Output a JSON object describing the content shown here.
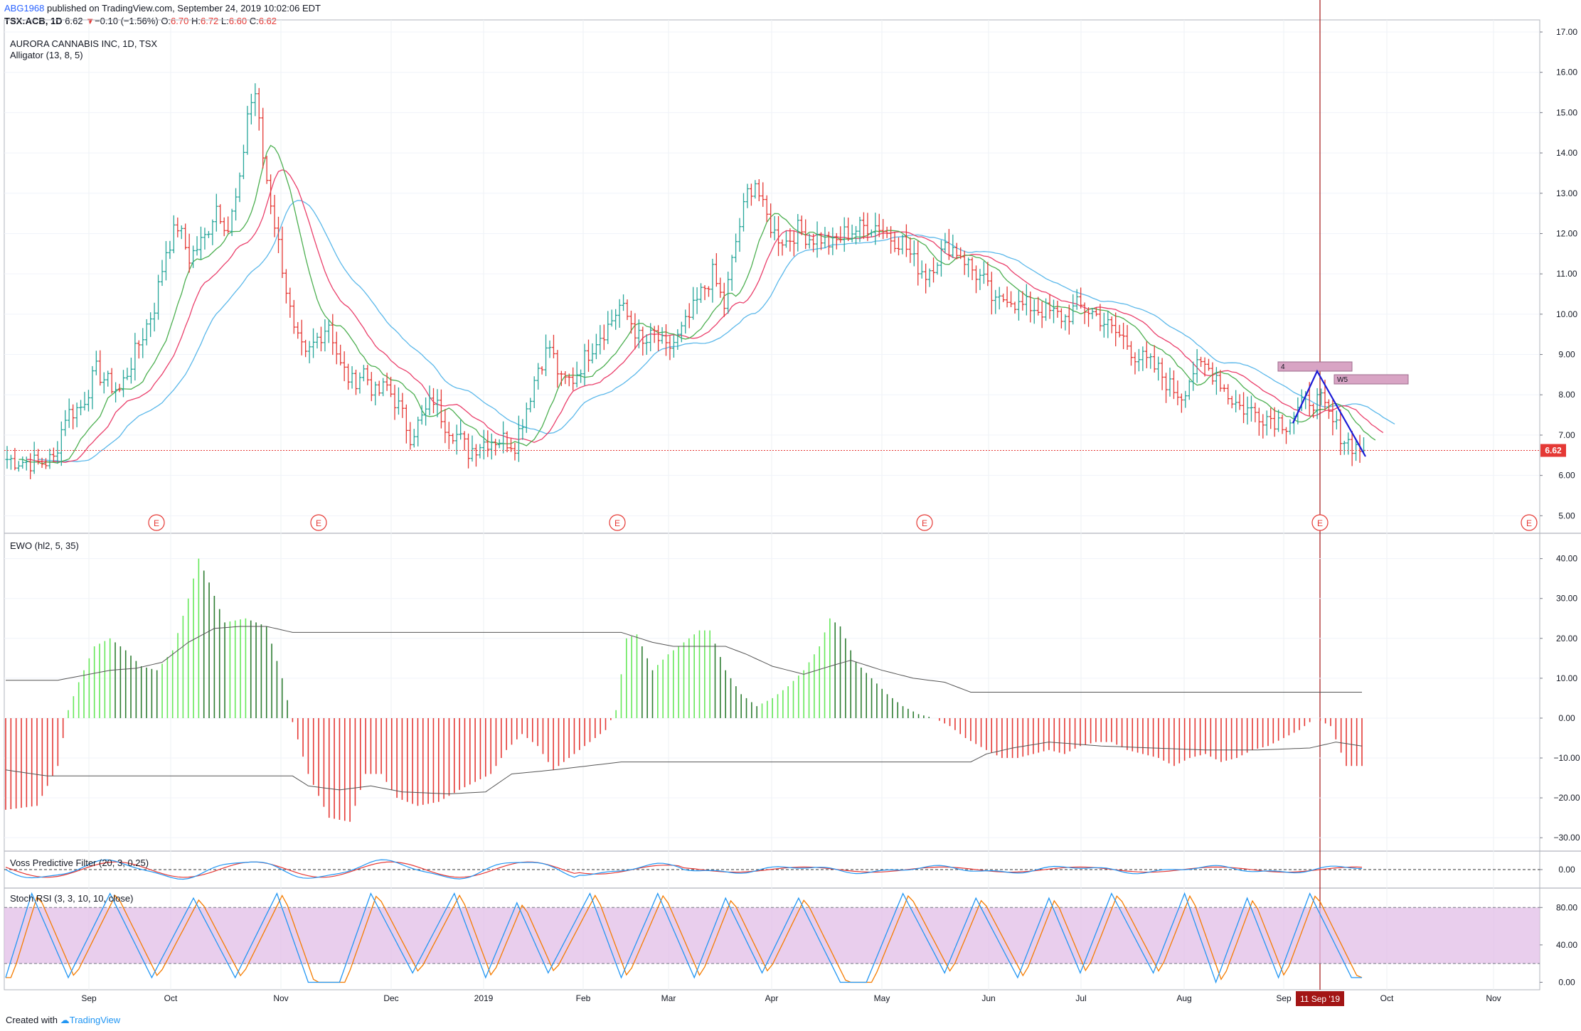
{
  "header": {
    "author": "ABG1968",
    "published": " published on TradingView.com, September 24, 2019 10:02:06 EDT"
  },
  "symbol_line": {
    "symbol": "TSX:ACB, 1D",
    "last": "6.62",
    "arrow": "▼",
    "change": "−0.10 (−1.56%)",
    "o_label": "O:",
    "o": "6.70",
    "h_label": "H:",
    "h": "6.72",
    "l_label": "L:",
    "l": "6.60",
    "c_label": "C:",
    "c": "6.62"
  },
  "footer": {
    "created_with": "Created with",
    "brand": "TradingView"
  },
  "colors": {
    "up": "#26a69a",
    "down": "#e53935",
    "jaw": "#5bb8ea",
    "teeth": "#ea3f6b",
    "lips": "#4caf50",
    "ewo_up_strong": "#2e7d32",
    "ewo_up_light": "#66e85a",
    "ewo_down": "#e53935",
    "stoch_k": "#2196f3",
    "stoch_d": "#f57c00",
    "band": "#e1bee7",
    "wave": "#1a1ad6",
    "event": "#e53935"
  },
  "chart_data": [
    {
      "type": "ohlc",
      "title": "AURORA CANNABIS INC, 1D, TSX",
      "indicator": "Alligator (13, 8, 5)",
      "ylim": [
        4.6,
        17.3
      ],
      "y_ticks": [
        "5.00",
        "6.00",
        "7.00",
        "8.00",
        "9.00",
        "10.00",
        "11.00",
        "12.00",
        "13.00",
        "14.00",
        "15.00",
        "16.00",
        "17.00"
      ],
      "x_ticks": [
        "Sep",
        "Oct",
        "Nov",
        "Dec",
        "2019",
        "Feb",
        "Mar",
        "Apr",
        "May",
        "Jun",
        "Jul",
        "Aug",
        "Sep",
        "Oct",
        "Nov"
      ],
      "last_price_label": "6.62",
      "crosshair_date": "11 Sep '19",
      "events_label": "E",
      "annotations": [
        "4",
        "W5"
      ],
      "close_path": [
        [
          0,
          6.4
        ],
        [
          8,
          6.3
        ],
        [
          12,
          6.4
        ],
        [
          15,
          7.5
        ],
        [
          19,
          7.7
        ],
        [
          23,
          8.6
        ],
        [
          26,
          8.3
        ],
        [
          29,
          8.1
        ],
        [
          32,
          8.8
        ],
        [
          35,
          9.5
        ],
        [
          38,
          10.2
        ],
        [
          41,
          11.6
        ],
        [
          44,
          12.2
        ],
        [
          47,
          11.4
        ],
        [
          51,
          11.9
        ],
        [
          54,
          12.7
        ],
        [
          57,
          12.1
        ],
        [
          60,
          13.2
        ],
        [
          62,
          15.0
        ],
        [
          64,
          15.5
        ],
        [
          66,
          13.9
        ],
        [
          68,
          12.8
        ],
        [
          71,
          11.2
        ],
        [
          74,
          9.5
        ],
        [
          77,
          8.9
        ],
        [
          80,
          9.4
        ],
        [
          83,
          9.8
        ],
        [
          86,
          8.7
        ],
        [
          89,
          8.3
        ],
        [
          92,
          8.6
        ],
        [
          95,
          8.0
        ],
        [
          98,
          8.2
        ],
        [
          101,
          7.7
        ],
        [
          104,
          7.0
        ],
        [
          107,
          7.4
        ],
        [
          110,
          7.9
        ],
        [
          113,
          7.3
        ],
        [
          116,
          7.0
        ],
        [
          119,
          6.6
        ],
        [
          122,
          6.8
        ],
        [
          125,
          6.9
        ],
        [
          128,
          6.9
        ],
        [
          131,
          6.8
        ],
        [
          134,
          7.7
        ],
        [
          137,
          8.7
        ],
        [
          140,
          9.2
        ],
        [
          143,
          8.3
        ],
        [
          146,
          8.4
        ],
        [
          149,
          8.9
        ],
        [
          152,
          9.4
        ],
        [
          155,
          9.7
        ],
        [
          158,
          10.2
        ],
        [
          161,
          9.8
        ],
        [
          164,
          9.2
        ],
        [
          167,
          9.5
        ],
        [
          170,
          9.1
        ],
        [
          173,
          9.4
        ],
        [
          176,
          9.9
        ],
        [
          179,
          10.5
        ],
        [
          182,
          11.0
        ],
        [
          185,
          10.2
        ],
        [
          188,
          11.8
        ],
        [
          191,
          13.0
        ],
        [
          193,
          13.3
        ],
        [
          195,
          12.6
        ],
        [
          198,
          12.0
        ],
        [
          201,
          11.8
        ],
        [
          204,
          12.1
        ],
        [
          207,
          11.9
        ],
        [
          210,
          11.9
        ],
        [
          213,
          11.7
        ],
        [
          216,
          12.0
        ],
        [
          219,
          12.1
        ],
        [
          222,
          12.2
        ],
        [
          225,
          12.2
        ],
        [
          228,
          11.9
        ],
        [
          231,
          11.8
        ],
        [
          234,
          11.3
        ],
        [
          237,
          11.0
        ],
        [
          240,
          11.4
        ],
        [
          243,
          11.7
        ],
        [
          246,
          11.5
        ],
        [
          249,
          11.1
        ],
        [
          252,
          10.8
        ],
        [
          255,
          10.2
        ],
        [
          258,
          10.5
        ],
        [
          261,
          10.2
        ],
        [
          264,
          10.2
        ],
        [
          267,
          10.1
        ],
        [
          270,
          10.0
        ],
        [
          273,
          9.9
        ],
        [
          276,
          10.2
        ],
        [
          279,
          10.1
        ],
        [
          282,
          9.9
        ],
        [
          285,
          9.6
        ],
        [
          288,
          9.4
        ],
        [
          291,
          9.0
        ],
        [
          294,
          8.8
        ],
        [
          297,
          8.6
        ],
        [
          300,
          8.2
        ],
        [
          303,
          8.0
        ],
        [
          306,
          8.6
        ],
        [
          309,
          8.7
        ],
        [
          312,
          8.5
        ],
        [
          315,
          8.0
        ],
        [
          318,
          7.7
        ],
        [
          321,
          7.6
        ],
        [
          324,
          7.5
        ],
        [
          327,
          7.4
        ],
        [
          330,
          7.3
        ],
        [
          333,
          7.6
        ],
        [
          336,
          7.9
        ],
        [
          339,
          7.8
        ],
        [
          342,
          7.3
        ],
        [
          345,
          6.9
        ],
        [
          348,
          6.7
        ],
        [
          350,
          6.62
        ]
      ],
      "alligator_note": "lips 5, teeth 8, jaw 13 smoothed moving averages"
    },
    {
      "type": "histogram",
      "title": "EWO (hl2, 5, 35)",
      "ylim": [
        -33,
        46
      ],
      "y_ticks": [
        "40.00",
        "30.00",
        "20.00",
        "10.00",
        "0.00",
        "−10.00",
        "−20.00",
        "−30.00"
      ],
      "values_path": [
        [
          0,
          -23
        ],
        [
          6,
          -22
        ],
        [
          10,
          -12
        ],
        [
          12,
          2
        ],
        [
          14,
          9
        ],
        [
          17,
          18
        ],
        [
          20,
          20
        ],
        [
          23,
          17
        ],
        [
          26,
          13
        ],
        [
          29,
          12
        ],
        [
          32,
          17
        ],
        [
          35,
          30
        ],
        [
          37,
          40
        ],
        [
          39,
          34
        ],
        [
          42,
          24
        ],
        [
          46,
          25
        ],
        [
          50,
          23
        ],
        [
          53,
          10
        ],
        [
          55,
          -1
        ],
        [
          58,
          -14
        ],
        [
          62,
          -25
        ],
        [
          66,
          -26
        ],
        [
          69,
          -14
        ],
        [
          72,
          -14
        ],
        [
          75,
          -20
        ],
        [
          79,
          -22
        ],
        [
          83,
          -21
        ],
        [
          87,
          -18
        ],
        [
          90,
          -16
        ],
        [
          93,
          -14
        ],
        [
          96,
          -8
        ],
        [
          99,
          -4
        ],
        [
          102,
          -7
        ],
        [
          105,
          -13
        ],
        [
          108,
          -10
        ],
        [
          112,
          -6
        ],
        [
          115,
          -3
        ],
        [
          117,
          2
        ],
        [
          119,
          20
        ],
        [
          121,
          21
        ],
        [
          124,
          12
        ],
        [
          127,
          16
        ],
        [
          130,
          19
        ],
        [
          133,
          22
        ],
        [
          135,
          22
        ],
        [
          138,
          12
        ],
        [
          141,
          6
        ],
        [
          144,
          3
        ],
        [
          147,
          5
        ],
        [
          150,
          8
        ],
        [
          153,
          12
        ],
        [
          156,
          18
        ],
        [
          158,
          25
        ],
        [
          160,
          23
        ],
        [
          163,
          14
        ],
        [
          166,
          10
        ],
        [
          169,
          6
        ],
        [
          172,
          3
        ],
        [
          175,
          1
        ],
        [
          178,
          0
        ],
        [
          181,
          -2
        ],
        [
          184,
          -5
        ],
        [
          188,
          -8
        ],
        [
          191,
          -10
        ],
        [
          194,
          -10
        ],
        [
          197,
          -9
        ],
        [
          200,
          -8
        ],
        [
          203,
          -9
        ],
        [
          206,
          -7
        ],
        [
          209,
          -6
        ],
        [
          212,
          -6
        ],
        [
          215,
          -8
        ],
        [
          218,
          -9
        ],
        [
          221,
          -10
        ],
        [
          224,
          -12
        ],
        [
          227,
          -10
        ],
        [
          230,
          -9
        ],
        [
          233,
          -11
        ],
        [
          236,
          -10
        ],
        [
          239,
          -8
        ],
        [
          242,
          -7
        ],
        [
          245,
          -5
        ],
        [
          248,
          -3
        ],
        [
          251,
          0
        ],
        [
          254,
          -2
        ],
        [
          257,
          -12
        ],
        [
          260,
          -12
        ]
      ],
      "upper_band_path": [
        [
          0,
          9.5
        ],
        [
          10,
          9.5
        ],
        [
          14,
          10.5
        ],
        [
          20,
          12
        ],
        [
          25,
          12.5
        ],
        [
          30,
          14
        ],
        [
          35,
          19
        ],
        [
          40,
          22.5
        ],
        [
          45,
          23
        ],
        [
          50,
          23
        ],
        [
          55,
          21.5
        ],
        [
          118,
          21.5
        ],
        [
          124,
          19
        ],
        [
          128,
          18
        ],
        [
          133,
          18
        ],
        [
          138,
          18
        ],
        [
          142,
          16
        ],
        [
          147,
          13
        ],
        [
          153,
          11
        ],
        [
          158,
          13
        ],
        [
          162,
          14.5
        ],
        [
          168,
          12
        ],
        [
          174,
          10
        ],
        [
          180,
          9
        ],
        [
          185,
          6.5
        ],
        [
          260,
          6.5
        ]
      ],
      "lower_band_path": [
        [
          0,
          -13
        ],
        [
          8,
          -14.5
        ],
        [
          50,
          -14.5
        ],
        [
          55,
          -14.5
        ],
        [
          58,
          -17
        ],
        [
          64,
          -18
        ],
        [
          70,
          -17
        ],
        [
          76,
          -18.5
        ],
        [
          85,
          -19
        ],
        [
          92,
          -18.5
        ],
        [
          97,
          -14
        ],
        [
          105,
          -13
        ],
        [
          118,
          -11
        ],
        [
          185,
          -11
        ],
        [
          188,
          -9
        ],
        [
          193,
          -7.5
        ],
        [
          200,
          -6
        ],
        [
          210,
          -7
        ],
        [
          220,
          -7.5
        ],
        [
          230,
          -8
        ],
        [
          240,
          -8
        ],
        [
          250,
          -7.5
        ],
        [
          255,
          -6
        ],
        [
          260,
          -7
        ]
      ]
    },
    {
      "type": "line",
      "title": "Voss Predictive Filter (20, 3, 0.25)",
      "y_ticks": [
        "0.00"
      ]
    },
    {
      "type": "line",
      "title": "Stoch RSI (3, 3, 10, 10, close)",
      "ylim": [
        -8,
        100
      ],
      "y_ticks": [
        "80.00",
        "40.00",
        "0.00"
      ],
      "band": [
        20,
        80
      ],
      "k_peaks": [
        [
          0,
          5
        ],
        [
          5,
          95
        ],
        [
          12,
          5
        ],
        [
          20,
          95
        ],
        [
          28,
          5
        ],
        [
          36,
          90
        ],
        [
          44,
          5
        ],
        [
          52,
          95
        ],
        [
          58,
          0
        ],
        [
          64,
          0
        ],
        [
          70,
          95
        ],
        [
          78,
          10
        ],
        [
          86,
          95
        ],
        [
          92,
          5
        ],
        [
          98,
          85
        ],
        [
          104,
          10
        ],
        [
          112,
          95
        ],
        [
          118,
          5
        ],
        [
          125,
          95
        ],
        [
          132,
          5
        ],
        [
          138,
          90
        ],
        [
          145,
          10
        ],
        [
          152,
          90
        ],
        [
          160,
          0
        ],
        [
          165,
          0
        ],
        [
          172,
          95
        ],
        [
          180,
          10
        ],
        [
          186,
          90
        ],
        [
          194,
          5
        ],
        [
          200,
          90
        ],
        [
          206,
          10
        ],
        [
          212,
          95
        ],
        [
          220,
          10
        ],
        [
          226,
          95
        ],
        [
          232,
          0
        ],
        [
          238,
          90
        ],
        [
          244,
          5
        ],
        [
          250,
          95
        ],
        [
          258,
          5
        ]
      ]
    }
  ]
}
